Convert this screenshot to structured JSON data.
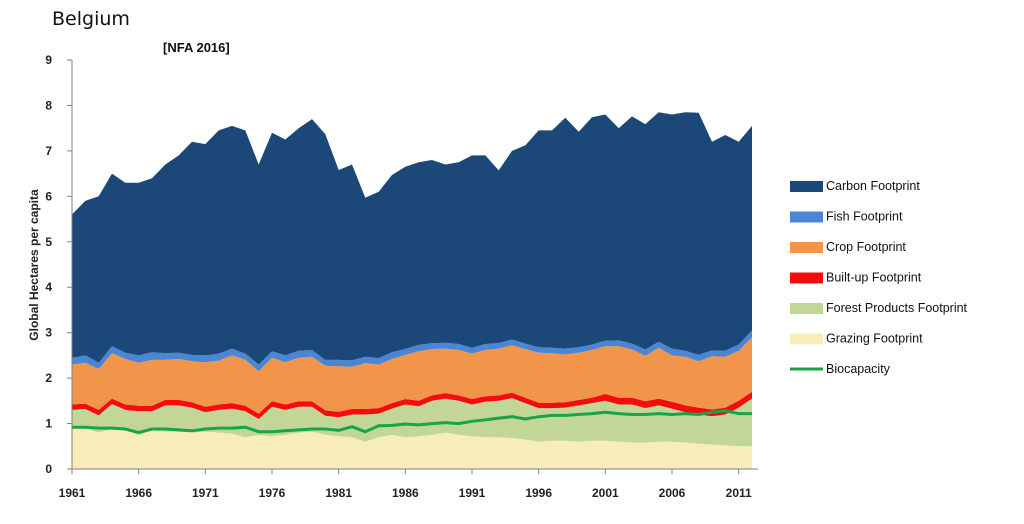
{
  "title": "Belgium",
  "subtitle": "[NFA 2016]",
  "colors": {
    "carbon": "#1b4878",
    "fish": "#4a86d4",
    "crop": "#f0954a",
    "built": "#f50c0c",
    "forest": "#c2d797",
    "grazing": "#f8edba",
    "biocapacity": "#19a34a",
    "axis": "#808080"
  },
  "chart_data": {
    "type": "area",
    "title": "Belgium",
    "subtitle": "[NFA 2016]",
    "xlabel": "",
    "ylabel": "Global Hectares per capita",
    "xlim": [
      1961,
      2012
    ],
    "ylim": [
      0,
      9
    ],
    "x_ticks": [
      "1961",
      "1966",
      "1971",
      "1976",
      "1981",
      "1986",
      "1991",
      "1996",
      "2001",
      "2006",
      "2011"
    ],
    "y_ticks": [
      "0",
      "1",
      "2",
      "3",
      "4",
      "5",
      "6",
      "7",
      "8",
      "9"
    ],
    "x": [
      1961,
      1962,
      1963,
      1964,
      1965,
      1966,
      1967,
      1968,
      1969,
      1970,
      1971,
      1972,
      1973,
      1974,
      1975,
      1976,
      1977,
      1978,
      1979,
      1980,
      1981,
      1982,
      1983,
      1984,
      1985,
      1986,
      1987,
      1988,
      1989,
      1990,
      1991,
      1992,
      1993,
      1994,
      1995,
      1996,
      1997,
      1998,
      1999,
      2000,
      2001,
      2002,
      2003,
      2004,
      2005,
      2006,
      2007,
      2008,
      2009,
      2010,
      2011,
      2012
    ],
    "stacked_series_bottom_to_top": [
      {
        "name": "Grazing Footprint",
        "values": [
          0.92,
          0.9,
          0.8,
          0.88,
          0.85,
          0.75,
          0.85,
          0.82,
          0.82,
          0.8,
          0.82,
          0.8,
          0.78,
          0.7,
          0.75,
          0.72,
          0.75,
          0.8,
          0.82,
          0.75,
          0.72,
          0.7,
          0.6,
          0.7,
          0.75,
          0.7,
          0.72,
          0.75,
          0.8,
          0.75,
          0.72,
          0.7,
          0.7,
          0.68,
          0.65,
          0.6,
          0.62,
          0.62,
          0.6,
          0.62,
          0.62,
          0.6,
          0.58,
          0.58,
          0.6,
          0.6,
          0.58,
          0.56,
          0.54,
          0.52,
          0.5,
          0.5
        ]
      },
      {
        "name": "Forest Products Footprint",
        "values": [
          0.38,
          0.42,
          0.38,
          0.55,
          0.45,
          0.52,
          0.42,
          0.58,
          0.58,
          0.55,
          0.43,
          0.5,
          0.55,
          0.57,
          0.35,
          0.65,
          0.55,
          0.57,
          0.55,
          0.42,
          0.42,
          0.5,
          0.6,
          0.52,
          0.58,
          0.72,
          0.66,
          0.75,
          0.75,
          0.75,
          0.7,
          0.78,
          0.8,
          0.88,
          0.8,
          0.74,
          0.72,
          0.73,
          0.8,
          0.83,
          0.88,
          0.82,
          0.84,
          0.76,
          0.8,
          0.73,
          0.67,
          0.64,
          0.62,
          0.68,
          0.85,
          1.05
        ]
      },
      {
        "name": "Built-up Footprint",
        "values": [
          0.12,
          0.12,
          0.12,
          0.12,
          0.12,
          0.12,
          0.12,
          0.12,
          0.12,
          0.12,
          0.12,
          0.12,
          0.12,
          0.12,
          0.12,
          0.12,
          0.12,
          0.12,
          0.12,
          0.12,
          0.12,
          0.12,
          0.12,
          0.12,
          0.12,
          0.12,
          0.12,
          0.12,
          0.12,
          0.12,
          0.12,
          0.12,
          0.12,
          0.12,
          0.12,
          0.12,
          0.12,
          0.12,
          0.12,
          0.12,
          0.15,
          0.15,
          0.15,
          0.15,
          0.15,
          0.15,
          0.15,
          0.15,
          0.15,
          0.15,
          0.15,
          0.15
        ]
      },
      {
        "name": "Crop Footprint",
        "values": [
          0.88,
          0.9,
          0.9,
          1.0,
          1.0,
          0.95,
          1.01,
          0.88,
          0.9,
          0.9,
          0.98,
          0.96,
          1.05,
          1.01,
          0.93,
          0.96,
          0.93,
          0.96,
          0.98,
          0.98,
          1.0,
          0.93,
          1.01,
          0.96,
          0.97,
          0.97,
          1.09,
          1.02,
          0.98,
          1.0,
          1.0,
          1.02,
          1.03,
          1.04,
          1.07,
          1.1,
          1.09,
          1.05,
          1.04,
          1.05,
          1.05,
          1.13,
          1.06,
          1.0,
          1.12,
          1.02,
          1.07,
          1.02,
          1.17,
          1.12,
          1.1,
          1.2
        ]
      },
      {
        "name": "Fish Footprint",
        "values": [
          0.15,
          0.16,
          0.14,
          0.15,
          0.14,
          0.16,
          0.17,
          0.15,
          0.14,
          0.14,
          0.15,
          0.16,
          0.15,
          0.14,
          0.15,
          0.14,
          0.15,
          0.15,
          0.15,
          0.13,
          0.14,
          0.14,
          0.14,
          0.14,
          0.15,
          0.13,
          0.14,
          0.13,
          0.13,
          0.13,
          0.13,
          0.13,
          0.12,
          0.13,
          0.12,
          0.12,
          0.12,
          0.13,
          0.12,
          0.12,
          0.12,
          0.13,
          0.13,
          0.14,
          0.13,
          0.15,
          0.13,
          0.14,
          0.13,
          0.13,
          0.14,
          0.15
        ]
      },
      {
        "name": "Carbon Footprint",
        "values": [
          3.15,
          3.4,
          3.66,
          3.8,
          3.74,
          3.8,
          3.83,
          4.15,
          4.34,
          4.69,
          4.65,
          4.91,
          4.9,
          4.91,
          4.4,
          4.81,
          4.75,
          4.9,
          5.08,
          4.97,
          4.18,
          4.31,
          3.5,
          3.66,
          3.9,
          4.01,
          4.02,
          4.03,
          3.92,
          4.0,
          4.23,
          4.15,
          3.8,
          4.15,
          4.36,
          4.77,
          4.78,
          5.08,
          4.74,
          5.0,
          4.98,
          4.67,
          5.0,
          4.96,
          5.05,
          5.15,
          5.25,
          5.33,
          4.59,
          4.75,
          4.46,
          4.5
        ]
      }
    ],
    "lines": [
      {
        "name": "Biocapacity",
        "values": [
          0.92,
          0.92,
          0.9,
          0.9,
          0.88,
          0.8,
          0.88,
          0.88,
          0.86,
          0.84,
          0.88,
          0.9,
          0.9,
          0.92,
          0.82,
          0.82,
          0.84,
          0.86,
          0.88,
          0.88,
          0.85,
          0.93,
          0.82,
          0.95,
          0.96,
          0.99,
          0.97,
          1.0,
          1.02,
          1.0,
          1.05,
          1.08,
          1.12,
          1.15,
          1.1,
          1.15,
          1.18,
          1.18,
          1.2,
          1.22,
          1.25,
          1.22,
          1.2,
          1.2,
          1.22,
          1.2,
          1.22,
          1.2,
          1.25,
          1.28,
          1.22,
          1.22
        ]
      }
    ],
    "legend": {
      "placement": "right",
      "entries": [
        "Carbon Footprint",
        "Fish Footprint",
        "Crop Footprint",
        "Built-up Footprint",
        "Forest Products Footprint",
        "Grazing Footprint",
        "Biocapacity"
      ]
    }
  }
}
